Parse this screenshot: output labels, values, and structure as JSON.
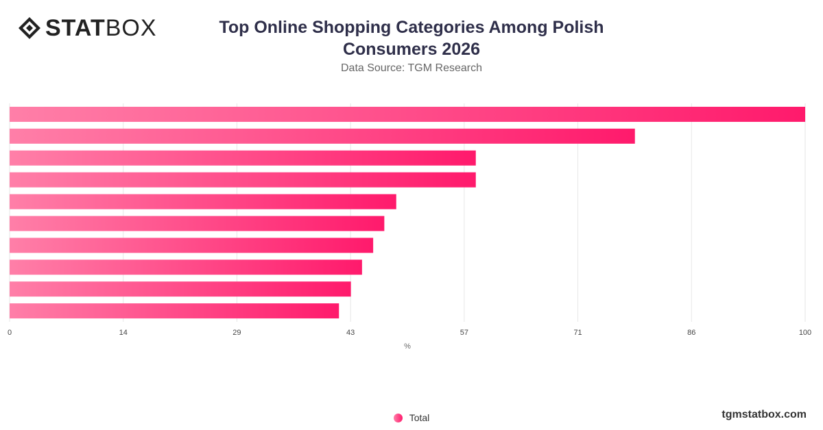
{
  "brand": {
    "logo_bold": "STAT",
    "logo_light": "BOX",
    "credit": "tgmstatbox.com"
  },
  "colors": {
    "bar_start": "#ff7fa8",
    "bar_end": "#ff1a6c",
    "grid": "#e6e6e6"
  },
  "chart_data": {
    "type": "bar",
    "orientation": "horizontal",
    "title": "Top Online Shopping Categories Among Polish Consumers 2026",
    "subtitle": "Data Source: TGM Research",
    "xlabel": "%",
    "xlim": [
      0,
      100
    ],
    "xticks": [
      "0",
      "14",
      "29",
      "43",
      "57",
      "71",
      "86",
      "100"
    ],
    "grid": true,
    "legend_position": "bottom",
    "series": [
      {
        "name": "Total",
        "values": [
          100,
          78.6,
          58.6,
          58.6,
          48.6,
          47.1,
          45.7,
          44.3,
          42.9,
          41.4
        ]
      }
    ]
  }
}
